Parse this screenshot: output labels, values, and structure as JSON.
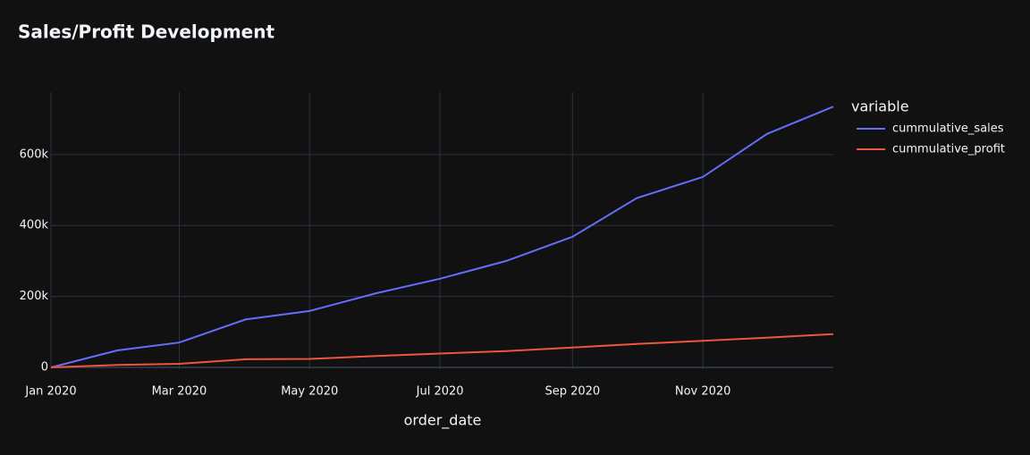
{
  "chart_data": {
    "type": "line",
    "title": "Sales/Profit Development",
    "x_label": "order_date",
    "legend_title": "variable",
    "legend": "right",
    "grid": true,
    "x": [
      "2020-01",
      "2020-02",
      "2020-03",
      "2020-04",
      "2020-05",
      "2020-06",
      "2020-07",
      "2020-08",
      "2020-09",
      "2020-10",
      "2020-11",
      "2020-12",
      "2021-01"
    ],
    "series": [
      {
        "name": "cummulative_sales",
        "color": "#636efa",
        "values": [
          0,
          48000,
          70000,
          135000,
          159000,
          209000,
          250000,
          300000,
          368000,
          477000,
          537000,
          658000,
          735000
        ]
      },
      {
        "name": "cummulative_profit",
        "color": "#ef553b",
        "values": [
          0,
          7000,
          10000,
          23000,
          24000,
          32000,
          39000,
          46000,
          56000,
          66000,
          75000,
          84000,
          94000
        ]
      }
    ],
    "xlim": [
      "2020-01",
      "2021-01"
    ],
    "xticks": [
      {
        "value": "2020-01",
        "label": "Jan 2020"
      },
      {
        "value": "2020-03",
        "label": "Mar 2020"
      },
      {
        "value": "2020-05",
        "label": "May 2020"
      },
      {
        "value": "2020-07",
        "label": "Jul 2020"
      },
      {
        "value": "2020-09",
        "label": "Sep 2020"
      },
      {
        "value": "2020-11",
        "label": "Nov 2020"
      }
    ],
    "ylim": [
      -5000,
      776000
    ],
    "yticks": [
      0,
      {
        "value": 200000,
        "label": "200k"
      },
      {
        "value": 400000,
        "label": "400k"
      },
      {
        "value": 600000,
        "label": "600k"
      }
    ]
  }
}
